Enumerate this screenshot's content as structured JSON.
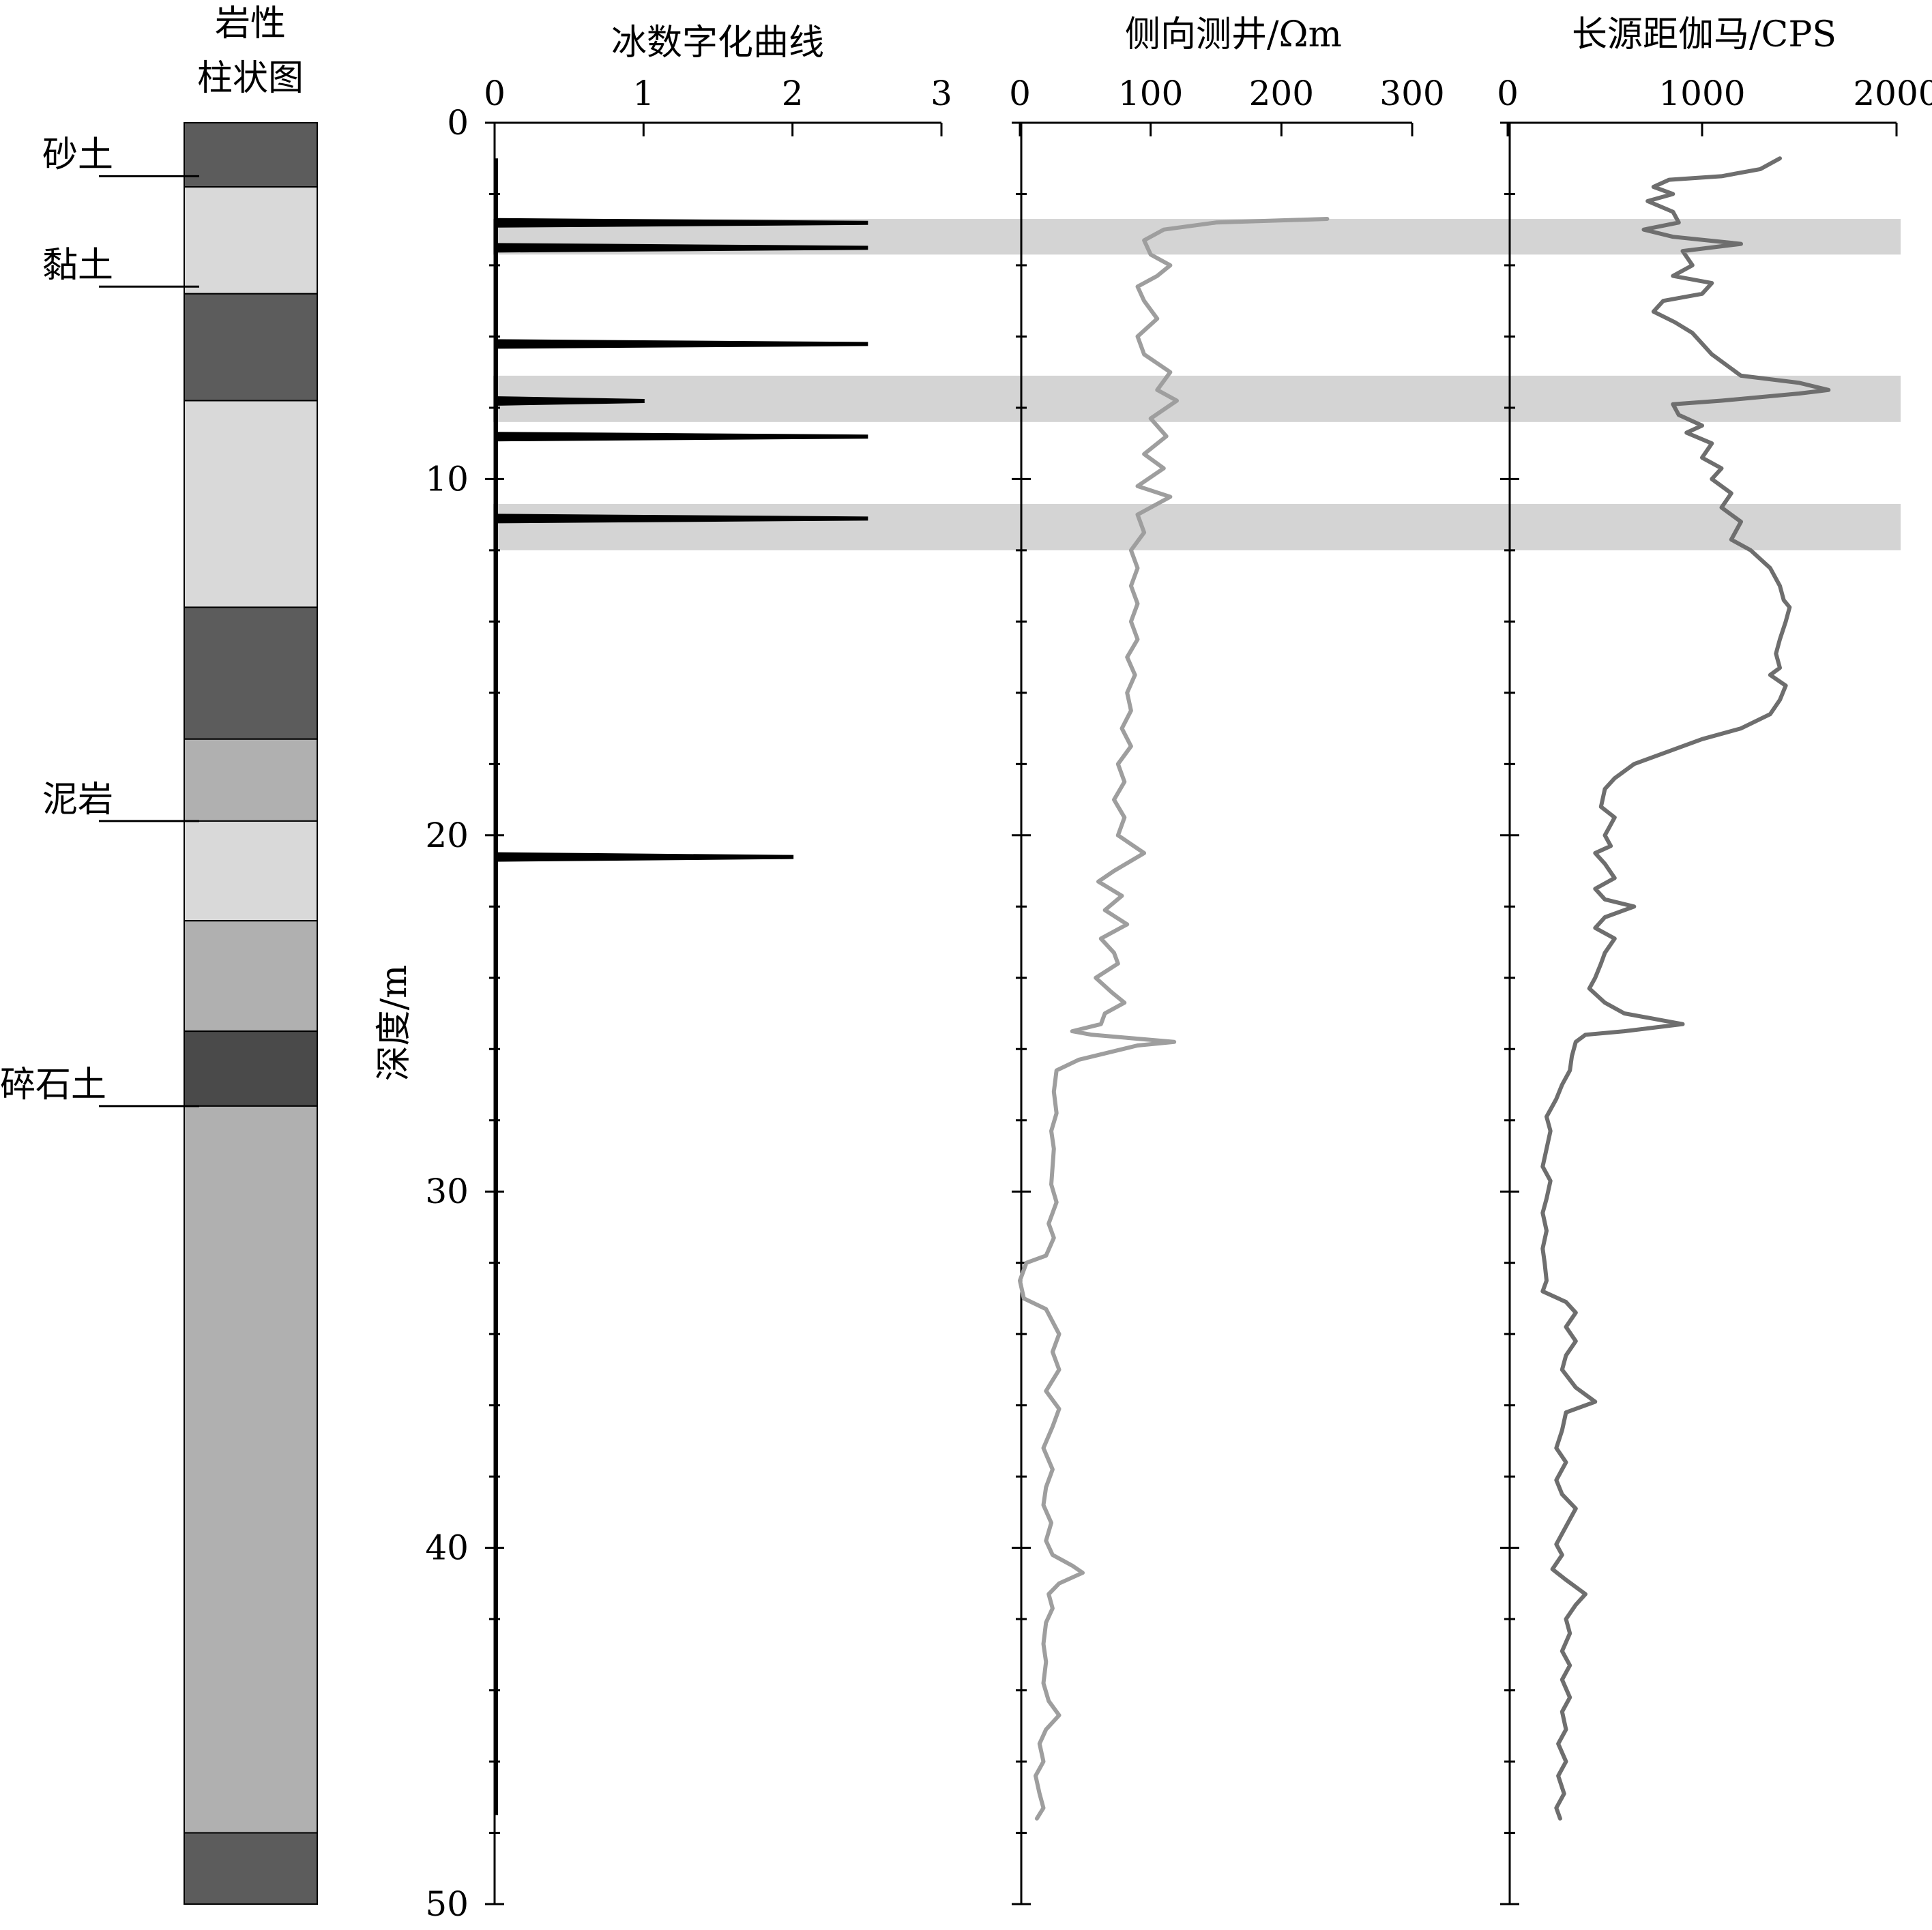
{
  "chart_data": {
    "type": "line",
    "title": "",
    "ylabel": "深度/m",
    "ylim": [
      0,
      50
    ],
    "yticks": [
      0,
      10,
      20,
      30,
      40,
      50
    ],
    "y_minor_step": 2,
    "lithology_column": {
      "title_line1": "岩性",
      "title_line2": "柱状图",
      "layers": [
        {
          "top": 0,
          "bottom": 1.8,
          "color": "#5c5c5c"
        },
        {
          "top": 1.8,
          "bottom": 4.8,
          "color": "#d9d9d9"
        },
        {
          "top": 4.8,
          "bottom": 7.8,
          "color": "#5c5c5c"
        },
        {
          "top": 7.8,
          "bottom": 13.6,
          "color": "#d9d9d9"
        },
        {
          "top": 13.6,
          "bottom": 17.3,
          "color": "#5c5c5c"
        },
        {
          "top": 17.3,
          "bottom": 19.6,
          "color": "#b0b0b0"
        },
        {
          "top": 19.6,
          "bottom": 22.4,
          "color": "#d9d9d9"
        },
        {
          "top": 22.4,
          "bottom": 25.5,
          "color": "#b0b0b0"
        },
        {
          "top": 25.5,
          "bottom": 27.6,
          "color": "#4a4a4a"
        },
        {
          "top": 27.6,
          "bottom": 48.0,
          "color": "#b0b0b0"
        },
        {
          "top": 48.0,
          "bottom": 50.0,
          "color": "#5c5c5c"
        }
      ],
      "labels": [
        {
          "text": "砂土",
          "depth": 1.5
        },
        {
          "text": "黏土",
          "depth": 4.6
        },
        {
          "text": "泥岩",
          "depth": 19.6
        },
        {
          "text": "碎石土",
          "depth": 27.6
        }
      ]
    },
    "highlight_bands": [
      [
        2.7,
        3.7
      ],
      [
        7.1,
        8.4
      ],
      [
        10.7,
        12.0
      ]
    ],
    "tracks": [
      {
        "title": "冰数字化曲线",
        "xlim": [
          0,
          3
        ],
        "xticks": [
          0,
          1,
          2,
          3
        ],
        "color": "#000000",
        "kind": "spikes",
        "baseline_range": [
          1.0,
          47.5
        ],
        "spikes": [
          {
            "depth": 2.8,
            "value": 2.5
          },
          {
            "depth": 3.5,
            "value": 2.5
          },
          {
            "depth": 6.2,
            "value": 2.5
          },
          {
            "depth": 7.8,
            "value": 1.0
          },
          {
            "depth": 8.8,
            "value": 2.5
          },
          {
            "depth": 11.1,
            "value": 2.5
          },
          {
            "depth": 20.6,
            "value": 2.0
          }
        ]
      },
      {
        "title": "侧向测井/Ωm",
        "xlim": [
          0,
          300
        ],
        "xticks": [
          0,
          100,
          200,
          300
        ],
        "color": "#9e9e9e",
        "kind": "curve",
        "points": [
          [
            235,
            2.7
          ],
          [
            150,
            2.8
          ],
          [
            110,
            3.0
          ],
          [
            95,
            3.3
          ],
          [
            100,
            3.7
          ],
          [
            115,
            4.0
          ],
          [
            105,
            4.3
          ],
          [
            90,
            4.6
          ],
          [
            95,
            5.0
          ],
          [
            105,
            5.5
          ],
          [
            90,
            6.0
          ],
          [
            95,
            6.5
          ],
          [
            115,
            7.0
          ],
          [
            105,
            7.5
          ],
          [
            120,
            7.8
          ],
          [
            100,
            8.3
          ],
          [
            112,
            8.8
          ],
          [
            95,
            9.3
          ],
          [
            110,
            9.7
          ],
          [
            90,
            10.2
          ],
          [
            115,
            10.5
          ],
          [
            90,
            11.0
          ],
          [
            95,
            11.5
          ],
          [
            85,
            12.0
          ],
          [
            90,
            12.5
          ],
          [
            85,
            13.0
          ],
          [
            90,
            13.5
          ],
          [
            85,
            14.0
          ],
          [
            90,
            14.5
          ],
          [
            82,
            15.0
          ],
          [
            88,
            15.5
          ],
          [
            82,
            16.0
          ],
          [
            85,
            16.5
          ],
          [
            78,
            17.0
          ],
          [
            85,
            17.5
          ],
          [
            75,
            18.0
          ],
          [
            80,
            18.5
          ],
          [
            72,
            19.0
          ],
          [
            80,
            19.5
          ],
          [
            75,
            20.0
          ],
          [
            95,
            20.5
          ],
          [
            72,
            21.0
          ],
          [
            60,
            21.3
          ],
          [
            78,
            21.7
          ],
          [
            65,
            22.1
          ],
          [
            82,
            22.5
          ],
          [
            62,
            22.9
          ],
          [
            72,
            23.3
          ],
          [
            75,
            23.6
          ],
          [
            58,
            24.0
          ],
          [
            70,
            24.4
          ],
          [
            80,
            24.7
          ],
          [
            65,
            25.0
          ],
          [
            62,
            25.3
          ],
          [
            40,
            25.5
          ],
          [
            55,
            25.6
          ],
          [
            118,
            25.8
          ],
          [
            90,
            25.9
          ],
          [
            45,
            26.3
          ],
          [
            28,
            26.6
          ],
          [
            26,
            27.2
          ],
          [
            28,
            27.8
          ],
          [
            24,
            28.3
          ],
          [
            26,
            28.8
          ],
          [
            25,
            29.3
          ],
          [
            24,
            29.8
          ],
          [
            28,
            30.3
          ],
          [
            22,
            30.9
          ],
          [
            26,
            31.3
          ],
          [
            20,
            31.8
          ],
          [
            5,
            32.0
          ],
          [
            0,
            32.5
          ],
          [
            3,
            33.0
          ],
          [
            20,
            33.3
          ],
          [
            30,
            34.0
          ],
          [
            25,
            34.5
          ],
          [
            30,
            35.0
          ],
          [
            20,
            35.6
          ],
          [
            30,
            36.1
          ],
          [
            25,
            36.6
          ],
          [
            18,
            37.2
          ],
          [
            25,
            37.8
          ],
          [
            20,
            38.3
          ],
          [
            18,
            38.8
          ],
          [
            24,
            39.3
          ],
          [
            20,
            39.8
          ],
          [
            25,
            40.2
          ],
          [
            40,
            40.5
          ],
          [
            48,
            40.7
          ],
          [
            30,
            41.0
          ],
          [
            22,
            41.3
          ],
          [
            25,
            41.7
          ],
          [
            20,
            42.1
          ],
          [
            18,
            42.7
          ],
          [
            20,
            43.2
          ],
          [
            18,
            43.8
          ],
          [
            22,
            44.3
          ],
          [
            30,
            44.7
          ],
          [
            20,
            45.1
          ],
          [
            15,
            45.5
          ],
          [
            18,
            46.0
          ],
          [
            12,
            46.4
          ],
          [
            15,
            46.9
          ],
          [
            18,
            47.3
          ],
          [
            13,
            47.6
          ]
        ]
      },
      {
        "title": "长源距伽马/CPS",
        "xlim": [
          0,
          2000
        ],
        "xticks": [
          0,
          1000,
          2000
        ],
        "color": "#6e6e6e",
        "kind": "curve",
        "points": [
          [
            1400,
            1.0
          ],
          [
            1300,
            1.3
          ],
          [
            1100,
            1.5
          ],
          [
            830,
            1.6
          ],
          [
            750,
            1.8
          ],
          [
            850,
            2.0
          ],
          [
            720,
            2.2
          ],
          [
            850,
            2.5
          ],
          [
            880,
            2.8
          ],
          [
            700,
            3.0
          ],
          [
            850,
            3.2
          ],
          [
            1200,
            3.4
          ],
          [
            900,
            3.6
          ],
          [
            950,
            4.0
          ],
          [
            850,
            4.3
          ],
          [
            1050,
            4.5
          ],
          [
            1000,
            4.8
          ],
          [
            800,
            5.0
          ],
          [
            750,
            5.3
          ],
          [
            860,
            5.6
          ],
          [
            950,
            5.9
          ],
          [
            1000,
            6.2
          ],
          [
            1050,
            6.5
          ],
          [
            1150,
            6.9
          ],
          [
            1200,
            7.1
          ],
          [
            1500,
            7.3
          ],
          [
            1650,
            7.5
          ],
          [
            1500,
            7.6
          ],
          [
            1100,
            7.8
          ],
          [
            850,
            7.9
          ],
          [
            880,
            8.2
          ],
          [
            1000,
            8.5
          ],
          [
            920,
            8.7
          ],
          [
            1050,
            9.0
          ],
          [
            1000,
            9.4
          ],
          [
            1100,
            9.7
          ],
          [
            1050,
            10.0
          ],
          [
            1150,
            10.4
          ],
          [
            1100,
            10.8
          ],
          [
            1200,
            11.2
          ],
          [
            1150,
            11.7
          ],
          [
            1250,
            12.0
          ],
          [
            1350,
            12.5
          ],
          [
            1400,
            13.0
          ],
          [
            1420,
            13.4
          ],
          [
            1450,
            13.6
          ],
          [
            1430,
            14.0
          ],
          [
            1400,
            14.5
          ],
          [
            1380,
            14.9
          ],
          [
            1400,
            15.3
          ],
          [
            1350,
            15.5
          ],
          [
            1430,
            15.8
          ],
          [
            1400,
            16.2
          ],
          [
            1350,
            16.6
          ],
          [
            1200,
            17.0
          ],
          [
            1000,
            17.3
          ],
          [
            850,
            17.6
          ],
          [
            650,
            18.0
          ],
          [
            550,
            18.4
          ],
          [
            500,
            18.7
          ],
          [
            480,
            19.2
          ],
          [
            550,
            19.5
          ],
          [
            500,
            20.0
          ],
          [
            530,
            20.3
          ],
          [
            450,
            20.5
          ],
          [
            500,
            20.8
          ],
          [
            550,
            21.2
          ],
          [
            450,
            21.5
          ],
          [
            500,
            21.8
          ],
          [
            650,
            22.0
          ],
          [
            500,
            22.3
          ],
          [
            450,
            22.6
          ],
          [
            550,
            22.9
          ],
          [
            500,
            23.3
          ],
          [
            480,
            23.6
          ],
          [
            450,
            24.0
          ],
          [
            420,
            24.3
          ],
          [
            500,
            24.7
          ],
          [
            600,
            25.0
          ],
          [
            800,
            25.2
          ],
          [
            900,
            25.3
          ],
          [
            600,
            25.5
          ],
          [
            400,
            25.6
          ],
          [
            350,
            25.8
          ],
          [
            330,
            26.2
          ],
          [
            320,
            26.6
          ],
          [
            280,
            27.0
          ],
          [
            250,
            27.4
          ],
          [
            200,
            27.9
          ],
          [
            220,
            28.3
          ],
          [
            200,
            28.8
          ],
          [
            180,
            29.3
          ],
          [
            220,
            29.7
          ],
          [
            200,
            30.2
          ],
          [
            180,
            30.6
          ],
          [
            200,
            31.1
          ],
          [
            180,
            31.6
          ],
          [
            190,
            32.0
          ],
          [
            200,
            32.5
          ],
          [
            180,
            32.8
          ],
          [
            300,
            33.1
          ],
          [
            350,
            33.4
          ],
          [
            300,
            33.8
          ],
          [
            350,
            34.2
          ],
          [
            300,
            34.6
          ],
          [
            280,
            35.0
          ],
          [
            350,
            35.5
          ],
          [
            450,
            35.9
          ],
          [
            300,
            36.2
          ],
          [
            280,
            36.7
          ],
          [
            250,
            37.2
          ],
          [
            300,
            37.6
          ],
          [
            250,
            38.1
          ],
          [
            280,
            38.5
          ],
          [
            350,
            38.9
          ],
          [
            300,
            39.4
          ],
          [
            250,
            39.9
          ],
          [
            280,
            40.2
          ],
          [
            230,
            40.6
          ],
          [
            300,
            40.9
          ],
          [
            400,
            41.3
          ],
          [
            350,
            41.6
          ],
          [
            300,
            42.0
          ],
          [
            320,
            42.4
          ],
          [
            280,
            42.9
          ],
          [
            320,
            43.3
          ],
          [
            280,
            43.7
          ],
          [
            320,
            44.2
          ],
          [
            280,
            44.6
          ],
          [
            300,
            45.1
          ],
          [
            260,
            45.5
          ],
          [
            300,
            46.0
          ],
          [
            260,
            46.4
          ],
          [
            290,
            46.9
          ],
          [
            250,
            47.3
          ],
          [
            270,
            47.6
          ]
        ]
      }
    ]
  }
}
